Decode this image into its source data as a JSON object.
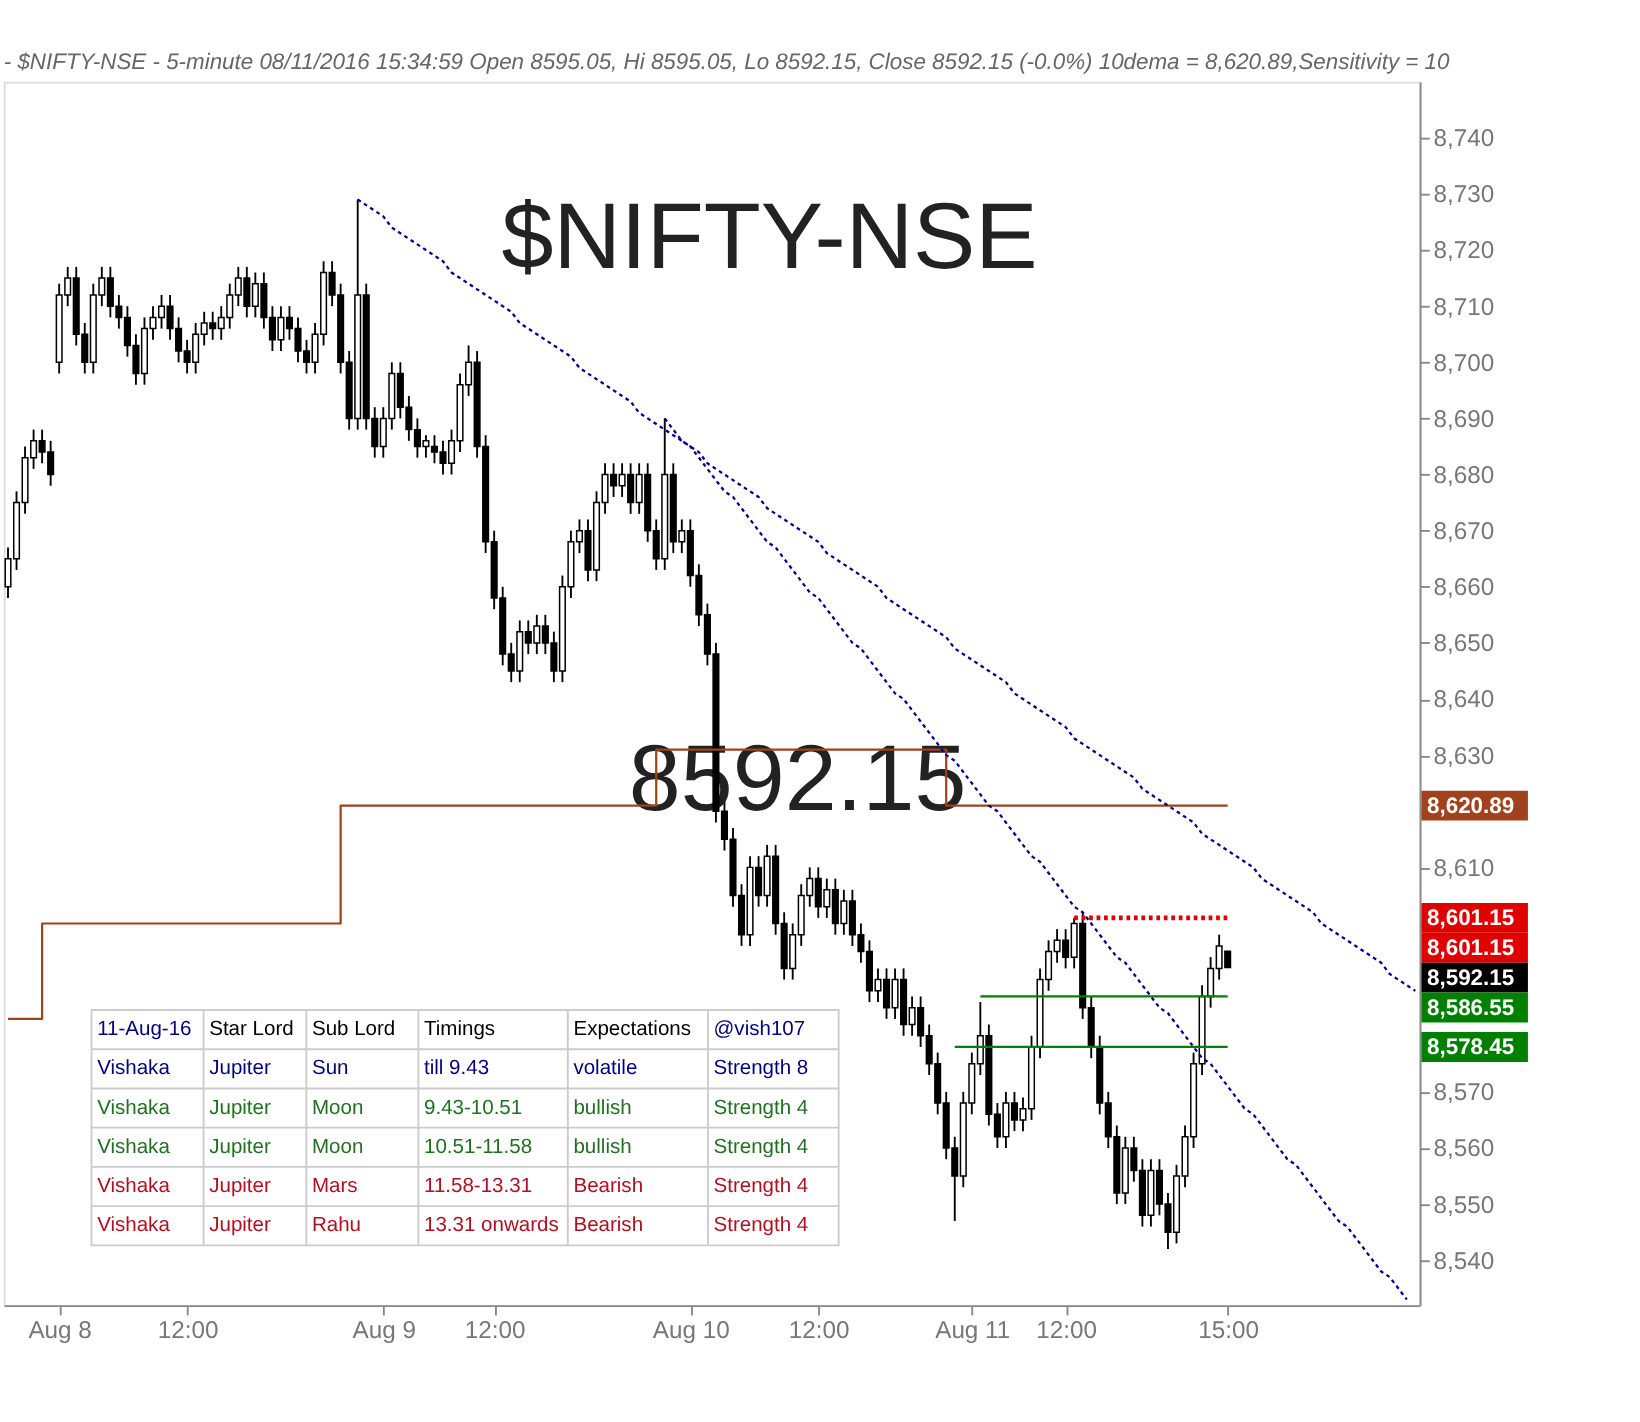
{
  "chart_data": {
    "type": "candlestick",
    "title": "- $NIFTY-NSE - 5-minute 08/11/2016 15:34:59 Open 8595.05, Hi 8595.05, Lo 8592.15, Close 8592.15 (-0.0%) 10dema = 8,620.89,Sensitivity = 10",
    "color": "#000000",
    "categories": [
      null,
      null,
      null,
      null,
      null,
      null,
      "Aug 8",
      null,
      null,
      null,
      null,
      null,
      null,
      null,
      null,
      null,
      null,
      null,
      null,
      null,
      null,
      "12:00",
      null,
      null,
      null,
      null,
      null,
      null,
      null,
      null,
      null,
      null,
      null,
      null,
      null,
      null,
      null,
      null,
      null,
      null,
      null,
      null,
      null,
      null,
      "Aug 9",
      null,
      null,
      null,
      null,
      null,
      null,
      null,
      null,
      null,
      null,
      null,
      null,
      "12:00",
      null,
      null,
      null,
      null,
      null,
      null,
      null,
      null,
      null,
      null,
      null,
      null,
      null,
      null,
      null,
      null,
      null,
      null,
      null,
      null,
      null,
      null,
      "Aug 10",
      null,
      null,
      null,
      null,
      null,
      null,
      null,
      null,
      null,
      null,
      null,
      null,
      null,
      null,
      "12:00",
      null,
      null,
      null,
      null,
      null,
      null,
      null,
      null,
      null,
      null,
      null,
      null,
      null,
      null,
      null,
      null,
      null,
      "Aug 11",
      null,
      null,
      null,
      null,
      null,
      null,
      null,
      null,
      null,
      null,
      "12:00",
      null,
      null,
      null,
      null,
      null,
      null,
      null,
      null,
      null,
      null,
      null,
      null,
      null,
      null,
      null,
      null,
      null,
      null,
      "15:00",
      null,
      null,
      null,
      null,
      null,
      null,
      null,
      null,
      null,
      null,
      null,
      null,
      null,
      null,
      null,
      null,
      null,
      null,
      null,
      null,
      null,
      null
    ],
    "ohlc": [
      [
        8660,
        8667,
        8658,
        8665
      ],
      [
        8665,
        8677,
        8663,
        8675
      ],
      [
        8675,
        8685,
        8673,
        8683
      ],
      [
        8683,
        8688,
        8681,
        8686
      ],
      [
        8686,
        8688,
        8682,
        8684
      ],
      [
        8684,
        8686,
        8678,
        8680
      ],
      [
        8700,
        8714,
        8698,
        8712
      ],
      [
        8712,
        8717,
        8710,
        8715
      ],
      [
        8715,
        8717,
        8703,
        8705
      ],
      [
        8705,
        8707,
        8698,
        8700
      ],
      [
        8700,
        8714,
        8698,
        8712
      ],
      [
        8712,
        8717,
        8710,
        8715
      ],
      [
        8715,
        8717,
        8708,
        8710
      ],
      [
        8710,
        8712,
        8706,
        8708
      ],
      [
        8708,
        8710,
        8701,
        8703
      ],
      [
        8703,
        8705,
        8696,
        8698
      ],
      [
        8698,
        8708,
        8696,
        8706
      ],
      [
        8706,
        8710,
        8704,
        8708
      ],
      [
        8708,
        8712,
        8706,
        8710
      ],
      [
        8710,
        8712,
        8704,
        8706
      ],
      [
        8706,
        8708,
        8700,
        8702
      ],
      [
        8702,
        8704,
        8698,
        8700
      ],
      [
        8700,
        8707,
        8698,
        8705
      ],
      [
        8705,
        8709,
        8703,
        8707
      ],
      [
        8707,
        8709,
        8704,
        8706
      ],
      [
        8706,
        8710,
        8704,
        8708
      ],
      [
        8708,
        8714,
        8706,
        8712
      ],
      [
        8712,
        8717,
        8710,
        8715
      ],
      [
        8715,
        8717,
        8708,
        8710
      ],
      [
        8710,
        8716,
        8708,
        8714
      ],
      [
        8714,
        8716,
        8706,
        8708
      ],
      [
        8708,
        8710,
        8702,
        8704
      ],
      [
        8704,
        8710,
        8702,
        8708
      ],
      [
        8708,
        8710,
        8704,
        8706
      ],
      [
        8706,
        8708,
        8700,
        8702
      ],
      [
        8702,
        8704,
        8698,
        8700
      ],
      [
        8700,
        8707,
        8698,
        8705
      ],
      [
        8705,
        8718,
        8703,
        8716
      ],
      [
        8716,
        8718,
        8710,
        8712
      ],
      [
        8712,
        8714,
        8698,
        8700
      ],
      [
        8700,
        8702,
        8688,
        8690
      ],
      [
        8690,
        8729,
        8688,
        8712
      ],
      [
        8712,
        8714,
        8688,
        8690
      ],
      [
        8690,
        8692,
        8683,
        8685
      ],
      [
        8685,
        8692,
        8683,
        8690
      ],
      [
        8690,
        8700,
        8688,
        8698
      ],
      [
        8698,
        8700,
        8690,
        8692
      ],
      [
        8692,
        8694,
        8686,
        8688
      ],
      [
        8688,
        8690,
        8683,
        8685
      ],
      [
        8685,
        8687,
        8683,
        8686
      ],
      [
        8685,
        8687,
        8682,
        8684
      ],
      [
        8684,
        8686,
        8680,
        8682
      ],
      [
        8682,
        8688,
        8680,
        8686
      ],
      [
        8686,
        8698,
        8684,
        8696
      ],
      [
        8696,
        8703,
        8694,
        8700
      ],
      [
        8700,
        8702,
        8683,
        8685
      ],
      [
        8685,
        8687,
        8666,
        8668
      ],
      [
        8668,
        8670,
        8656,
        8658
      ],
      [
        8658,
        8660,
        8646,
        8648
      ],
      [
        8648,
        8650,
        8643,
        8645
      ],
      [
        8645,
        8654,
        8643,
        8652
      ],
      [
        8652,
        8654,
        8648,
        8650
      ],
      [
        8650,
        8655,
        8648,
        8653
      ],
      [
        8653,
        8655,
        8648,
        8650
      ],
      [
        8650,
        8652,
        8643,
        8645
      ],
      [
        8645,
        8662,
        8643,
        8660
      ],
      [
        8660,
        8670,
        8658,
        8668
      ],
      [
        8668,
        8672,
        8666,
        8670
      ],
      [
        8670,
        8672,
        8661,
        8663
      ],
      [
        8663,
        8677,
        8661,
        8675
      ],
      [
        8675,
        8682,
        8673,
        8680
      ],
      [
        8680,
        8682,
        8676,
        8678
      ],
      [
        8678,
        8682,
        8676,
        8680
      ],
      [
        8680,
        8682,
        8673,
        8675
      ],
      [
        8675,
        8682,
        8673,
        8680
      ],
      [
        8680,
        8682,
        8668,
        8670
      ],
      [
        8670,
        8672,
        8663,
        8665
      ],
      [
        8665,
        8690,
        8663,
        8680
      ],
      [
        8680,
        8682,
        8666,
        8668
      ],
      [
        8668,
        8672,
        8666,
        8670
      ],
      [
        8670,
        8672,
        8660,
        8662
      ],
      [
        8662,
        8664,
        8653,
        8655
      ],
      [
        8655,
        8657,
        8646,
        8648
      ],
      [
        8648,
        8650,
        8618,
        8620
      ],
      [
        8620,
        8622,
        8613,
        8615
      ],
      [
        8615,
        8617,
        8603,
        8605
      ],
      [
        8605,
        8607,
        8596,
        8598
      ],
      [
        8598,
        8612,
        8596,
        8610
      ],
      [
        8610,
        8612,
        8603,
        8605
      ],
      [
        8605,
        8614,
        8603,
        8612
      ],
      [
        8612,
        8614,
        8598,
        8600
      ],
      [
        8600,
        8602,
        8590,
        8592
      ],
      [
        8592,
        8600,
        8590,
        8598
      ],
      [
        8598,
        8607,
        8596,
        8605
      ],
      [
        8605,
        8610,
        8603,
        8608
      ],
      [
        8608,
        8610,
        8601,
        8603
      ],
      [
        8603,
        8608,
        8601,
        8606
      ],
      [
        8606,
        8608,
        8598,
        8600
      ],
      [
        8600,
        8606,
        8598,
        8604
      ],
      [
        8604,
        8606,
        8596,
        8598
      ],
      [
        8598,
        8600,
        8593,
        8595
      ],
      [
        8595,
        8597,
        8586,
        8588
      ],
      [
        8588,
        8592,
        8586,
        8590
      ],
      [
        8590,
        8592,
        8583,
        8585
      ],
      [
        8585,
        8592,
        8583,
        8590
      ],
      [
        8590,
        8592,
        8580,
        8582
      ],
      [
        8582,
        8587,
        8580,
        8585
      ],
      [
        8585,
        8587,
        8578,
        8580
      ],
      [
        8580,
        8582,
        8573,
        8575
      ],
      [
        8575,
        8577,
        8566,
        8568
      ],
      [
        8568,
        8570,
        8558,
        8560
      ],
      [
        8560,
        8562,
        8547,
        8555
      ],
      [
        8555,
        8570,
        8553,
        8568
      ],
      [
        8568,
        8577,
        8566,
        8575
      ],
      [
        8575,
        8586,
        8573,
        8580
      ],
      [
        8580,
        8582,
        8564,
        8566
      ],
      [
        8566,
        8568,
        8560,
        8562
      ],
      [
        8562,
        8570,
        8560,
        8568
      ],
      [
        8568,
        8570,
        8563,
        8565
      ],
      [
        8565,
        8569,
        8563,
        8567
      ],
      [
        8567,
        8580,
        8565,
        8578
      ],
      [
        8578,
        8592,
        8576,
        8590
      ],
      [
        8590,
        8597,
        8588,
        8595
      ],
      [
        8595,
        8599,
        8593,
        8597
      ],
      [
        8597,
        8599,
        8592,
        8594
      ],
      [
        8594,
        8601,
        8592,
        8600
      ],
      [
        8600,
        8602,
        8583,
        8585
      ],
      [
        8585,
        8587,
        8576,
        8578
      ],
      [
        8578,
        8580,
        8566,
        8568
      ],
      [
        8568,
        8570,
        8560,
        8562
      ],
      [
        8562,
        8564,
        8550,
        8552
      ],
      [
        8552,
        8562,
        8550,
        8560
      ],
      [
        8560,
        8562,
        8554,
        8556
      ],
      [
        8556,
        8558,
        8546,
        8548
      ],
      [
        8548,
        8558,
        8546,
        8556
      ],
      [
        8556,
        8558,
        8548,
        8550
      ],
      [
        8550,
        8552,
        8542,
        8545
      ],
      [
        8545,
        8557,
        8543,
        8555
      ],
      [
        8555,
        8564,
        8553,
        8562
      ],
      [
        8562,
        8577,
        8560,
        8575
      ],
      [
        8575,
        8589,
        8573,
        8587
      ],
      [
        8587,
        8594,
        8585,
        8592
      ],
      [
        8592,
        8598,
        8590,
        8596
      ],
      [
        8595.05,
        8595.05,
        8592.15,
        8592.15
      ],
      null,
      null,
      null,
      null,
      null,
      null,
      null,
      null,
      null,
      null,
      null,
      null,
      null,
      null,
      null,
      null,
      null,
      null,
      null,
      null,
      null,
      null
    ],
    "series": [
      {
        "type": "step",
        "color": "#a0421e",
        "line_style": "solid",
        "values": [
          8583,
          8583,
          8583,
          8583,
          8600,
          8600,
          8600,
          8600,
          8600,
          8600,
          8600,
          8600,
          8600,
          8600,
          8600,
          8600,
          8600,
          8600,
          8600,
          8600,
          8600,
          8600,
          8600,
          8600,
          8600,
          8600,
          8600,
          8600,
          8600,
          8600,
          8600,
          8600,
          8600,
          8600,
          8600,
          8600,
          8600,
          8600,
          8600,
          8621,
          8621,
          8621,
          8621,
          8621,
          8621,
          8621,
          8621,
          8621,
          8621,
          8621,
          8621,
          8621,
          8621,
          8621,
          8621,
          8621,
          8621,
          8621,
          8621,
          8621,
          8621,
          8621,
          8621,
          8621,
          8621,
          8621,
          8621,
          8621,
          8621,
          8621,
          8621,
          8621,
          8621,
          8621,
          8621,
          8621,
          8631,
          8631,
          8631,
          8631,
          8631,
          8631,
          8631,
          8631,
          8631,
          8631,
          8631,
          8631,
          8631,
          8631,
          8631,
          8631,
          8631,
          8631,
          8631,
          8631,
          8631,
          8631,
          8631,
          8631,
          8631,
          8631,
          8631,
          8631,
          8631,
          8631,
          8631,
          8631,
          8631,
          8631,
          8621,
          8621,
          8621,
          8621,
          8621,
          8621,
          8621,
          8621,
          8621,
          8621,
          8621,
          8621,
          8621,
          8621,
          8621,
          8621,
          8621,
          8621,
          8621,
          8621,
          8621,
          8621,
          8621,
          8621,
          8621,
          8621,
          8621,
          8621,
          8621,
          8621,
          8621,
          8621,
          8621,
          8621,
          null,
          null,
          null,
          null,
          null,
          null,
          null,
          null,
          null,
          null,
          null,
          null,
          null,
          null,
          null,
          null,
          null,
          null,
          null,
          null,
          null,
          null
        ]
      },
      {
        "type": "line",
        "color": "#00008b",
        "line_style": "dotted",
        "values": [
          null,
          null,
          null,
          null,
          null,
          null,
          null,
          null,
          null,
          null,
          null,
          null,
          null,
          null,
          null,
          null,
          null,
          null,
          null,
          null,
          null,
          null,
          null,
          null,
          null,
          null,
          null,
          null,
          null,
          null,
          null,
          null,
          null,
          null,
          null,
          null,
          null,
          null,
          null,
          null,
          null,
          8729,
          8728,
          8727,
          8726,
          8724,
          8723,
          8722,
          8721,
          8720,
          8719,
          8718,
          8716,
          8715,
          8714,
          8713,
          8712,
          8711,
          8710,
          8709,
          8707,
          8706,
          8705,
          8704,
          8703,
          8702,
          8701,
          8699,
          8698,
          8697,
          8696,
          8695,
          8694,
          8693,
          8691,
          8690,
          8689,
          8688,
          8687,
          8686,
          8685,
          8684,
          8682,
          8681,
          8680,
          8679,
          8678,
          8677,
          8676,
          8674,
          8673,
          8672,
          8671,
          8670,
          8669,
          8668,
          8666,
          8665,
          8664,
          8663,
          8662,
          8661,
          8660,
          8658,
          8657,
          8656,
          8655,
          8654,
          8653,
          8652,
          8651,
          8649,
          8648,
          8647,
          8646,
          8645,
          8644,
          8643,
          8641,
          8640,
          8639,
          8638,
          8637,
          8636,
          8635,
          8633,
          8632,
          8631,
          8630,
          8629,
          8628,
          8627,
          8626,
          8624,
          8623,
          8622,
          8621,
          8620,
          8619,
          8618,
          8616,
          8615,
          8614,
          8613,
          8612,
          8611,
          8610,
          8608,
          8607,
          8606,
          8605,
          8604,
          8603,
          8602,
          8600,
          8599,
          8598,
          8597,
          8596,
          8595,
          8594,
          8593,
          8591,
          8590,
          8589,
          8588
        ]
      },
      {
        "type": "line",
        "color": "#00008b",
        "line_style": "dotted",
        "values": [
          null,
          null,
          null,
          null,
          null,
          null,
          null,
          null,
          null,
          null,
          null,
          null,
          null,
          null,
          null,
          null,
          null,
          null,
          null,
          null,
          null,
          null,
          null,
          null,
          null,
          null,
          null,
          null,
          null,
          null,
          null,
          null,
          null,
          null,
          null,
          null,
          null,
          null,
          null,
          null,
          null,
          null,
          null,
          null,
          null,
          null,
          null,
          null,
          null,
          null,
          null,
          null,
          null,
          null,
          null,
          null,
          null,
          null,
          null,
          null,
          null,
          null,
          null,
          null,
          null,
          null,
          null,
          null,
          null,
          null,
          null,
          null,
          null,
          null,
          null,
          null,
          null,
          8690,
          8688,
          8686,
          8685,
          8683,
          8681,
          8679,
          8677,
          8676,
          8674,
          8672,
          8670,
          8668,
          8667,
          8665,
          8663,
          8661,
          8659,
          8658,
          8656,
          8654,
          8652,
          8650,
          8649,
          8647,
          8645,
          8643,
          8641,
          8640,
          8638,
          8636,
          8634,
          8632,
          8630,
          8629,
          8627,
          8625,
          8623,
          8621,
          8620,
          8618,
          8616,
          8614,
          8612,
          8611,
          8609,
          8607,
          8605,
          8603,
          8602,
          8600,
          8598,
          8596,
          8594,
          8593,
          8591,
          8589,
          8587,
          8585,
          8584,
          8582,
          8580,
          8578,
          8576,
          8575,
          8573,
          8571,
          8569,
          8567,
          8566,
          8564,
          8562,
          8560,
          8558,
          8557,
          8555,
          8553,
          8551,
          8549,
          8547,
          8546,
          8544,
          8542,
          8540,
          8538,
          8537,
          8535,
          8533,
          null
        ]
      },
      {
        "type": "line",
        "color": "#e00000",
        "line_style": "dotted",
        "values": [
          null,
          null,
          null,
          null,
          null,
          null,
          null,
          null,
          null,
          null,
          null,
          null,
          null,
          null,
          null,
          null,
          null,
          null,
          null,
          null,
          null,
          null,
          null,
          null,
          null,
          null,
          null,
          null,
          null,
          null,
          null,
          null,
          null,
          null,
          null,
          null,
          null,
          null,
          null,
          null,
          null,
          null,
          null,
          null,
          null,
          null,
          null,
          null,
          null,
          null,
          null,
          null,
          null,
          null,
          null,
          null,
          null,
          null,
          null,
          null,
          null,
          null,
          null,
          null,
          null,
          null,
          null,
          null,
          null,
          null,
          null,
          null,
          null,
          null,
          null,
          null,
          null,
          null,
          null,
          null,
          null,
          null,
          null,
          null,
          null,
          null,
          null,
          null,
          null,
          null,
          null,
          null,
          null,
          null,
          null,
          null,
          null,
          null,
          null,
          null,
          null,
          null,
          null,
          null,
          null,
          null,
          null,
          null,
          null,
          null,
          null,
          null,
          null,
          null,
          null,
          null,
          null,
          null,
          null,
          null,
          null,
          null,
          null,
          null,
          null,
          8601,
          8601,
          8601,
          8601,
          8601,
          8601,
          8601,
          8601,
          8601,
          8601,
          8601,
          8601,
          8601,
          8601,
          8601,
          8601,
          8601,
          8601,
          8601,
          null,
          null,
          null,
          null,
          null,
          null,
          null,
          null,
          null,
          null,
          null,
          null,
          null,
          null,
          null,
          null,
          null,
          null,
          null,
          null,
          null,
          null
        ]
      },
      {
        "type": "line",
        "color": "#008000",
        "line_style": "solid",
        "values": [
          null,
          null,
          null,
          null,
          null,
          null,
          null,
          null,
          null,
          null,
          null,
          null,
          null,
          null,
          null,
          null,
          null,
          null,
          null,
          null,
          null,
          null,
          null,
          null,
          null,
          null,
          null,
          null,
          null,
          null,
          null,
          null,
          null,
          null,
          null,
          null,
          null,
          null,
          null,
          null,
          null,
          null,
          null,
          null,
          null,
          null,
          null,
          null,
          null,
          null,
          null,
          null,
          null,
          null,
          null,
          null,
          null,
          null,
          null,
          null,
          null,
          null,
          null,
          null,
          null,
          null,
          null,
          null,
          null,
          null,
          null,
          null,
          null,
          null,
          null,
          null,
          null,
          null,
          null,
          null,
          null,
          null,
          null,
          null,
          null,
          null,
          null,
          null,
          null,
          null,
          null,
          null,
          null,
          null,
          null,
          null,
          null,
          null,
          null,
          null,
          null,
          null,
          null,
          null,
          null,
          null,
          null,
          null,
          null,
          null,
          null,
          null,
          null,
          null,
          8587,
          8587,
          8587,
          8587,
          8587,
          8587,
          8587,
          8587,
          8587,
          8587,
          8587,
          8587,
          8587,
          8587,
          8587,
          8587,
          8587,
          8587,
          8587,
          8587,
          8587,
          8587,
          8587,
          8587,
          8587,
          8587,
          8587,
          8587,
          8587,
          8587,
          null,
          null,
          null,
          null,
          null,
          null,
          null,
          null,
          null,
          null,
          null,
          null,
          null,
          null,
          null,
          null,
          null,
          null,
          null,
          null,
          null,
          null
        ]
      },
      {
        "type": "line",
        "color": "#008000",
        "line_style": "solid",
        "values": [
          null,
          null,
          null,
          null,
          null,
          null,
          null,
          null,
          null,
          null,
          null,
          null,
          null,
          null,
          null,
          null,
          null,
          null,
          null,
          null,
          null,
          null,
          null,
          null,
          null,
          null,
          null,
          null,
          null,
          null,
          null,
          null,
          null,
          null,
          null,
          null,
          null,
          null,
          null,
          null,
          null,
          null,
          null,
          null,
          null,
          null,
          null,
          null,
          null,
          null,
          null,
          null,
          null,
          null,
          null,
          null,
          null,
          null,
          null,
          null,
          null,
          null,
          null,
          null,
          null,
          null,
          null,
          null,
          null,
          null,
          null,
          null,
          null,
          null,
          null,
          null,
          null,
          null,
          null,
          null,
          null,
          null,
          null,
          null,
          null,
          null,
          null,
          null,
          null,
          null,
          null,
          null,
          null,
          null,
          null,
          null,
          null,
          null,
          null,
          null,
          null,
          null,
          null,
          null,
          null,
          null,
          null,
          null,
          null,
          null,
          null,
          8578,
          8578,
          8578,
          8578,
          8578,
          8578,
          8578,
          8578,
          8578,
          8578,
          8578,
          8578,
          8578,
          8578,
          8578,
          8578,
          8578,
          8578,
          8578,
          8578,
          8578,
          8578,
          8578,
          8578,
          8578,
          8578,
          8578,
          8578,
          8578,
          8578,
          8578,
          8578,
          8578,
          null,
          null,
          null,
          null,
          null,
          null,
          null,
          null,
          null,
          null,
          null,
          null,
          null,
          null,
          null,
          null,
          null,
          null,
          null,
          null,
          null,
          null
        ]
      }
    ],
    "ylim": [
      8532,
      8750
    ],
    "yticks": [
      {
        "value": 8540,
        "label": "8,540"
      },
      {
        "value": 8550,
        "label": "8,550"
      },
      {
        "value": 8560,
        "label": "8,560"
      },
      {
        "value": 8570,
        "label": "8,570"
      },
      {
        "value": 8580,
        "label": null
      },
      {
        "value": 8590,
        "label": null
      },
      {
        "value": 8600,
        "label": null
      },
      {
        "value": 8610,
        "label": "8,610"
      },
      {
        "value": 8620,
        "label": null
      },
      {
        "value": 8630,
        "label": "8,630"
      },
      {
        "value": 8640,
        "label": "8,640"
      },
      {
        "value": 8650,
        "label": "8,650"
      },
      {
        "value": 8660,
        "label": "8,660"
      },
      {
        "value": 8670,
        "label": "8,670"
      },
      {
        "value": 8680,
        "label": "8,680"
      },
      {
        "value": 8690,
        "label": "8,690"
      },
      {
        "value": 8700,
        "label": "8,700"
      },
      {
        "value": 8710,
        "label": "8,710"
      },
      {
        "value": 8720,
        "label": "8,720"
      },
      {
        "value": 8730,
        "label": "8,730"
      },
      {
        "value": 8740,
        "label": "8,740"
      }
    ],
    "annotations": [
      "$NIFTY-NSE",
      "8592.15",
      "11-Aug-16",
      "Star Lord",
      "Sub Lord",
      "Timings",
      "Expectations",
      "@vish107",
      "Vishaka",
      "Jupiter",
      "Sun",
      "till 9.43",
      "volatile",
      "Strength 8",
      "Vishaka",
      "Jupiter",
      "Moon",
      "9.43-10.51",
      "bullish",
      "Strength 4",
      "Vishaka",
      "Jupiter",
      "Moon",
      "10.51-11.58",
      "bullish",
      "Strength 4",
      "Vishaka",
      "Jupiter",
      "Mars",
      "11.58-13.31",
      "Bearish",
      "Strength 4",
      "Vishaka",
      "Jupiter",
      "Rahu",
      "13.31 onwards",
      "Bearish",
      "Strength 4",
      "8,620.89",
      "8,601.15",
      "8,601.15",
      "8,592.15",
      "8,586.55",
      "8,578.45"
    ]
  }
}
